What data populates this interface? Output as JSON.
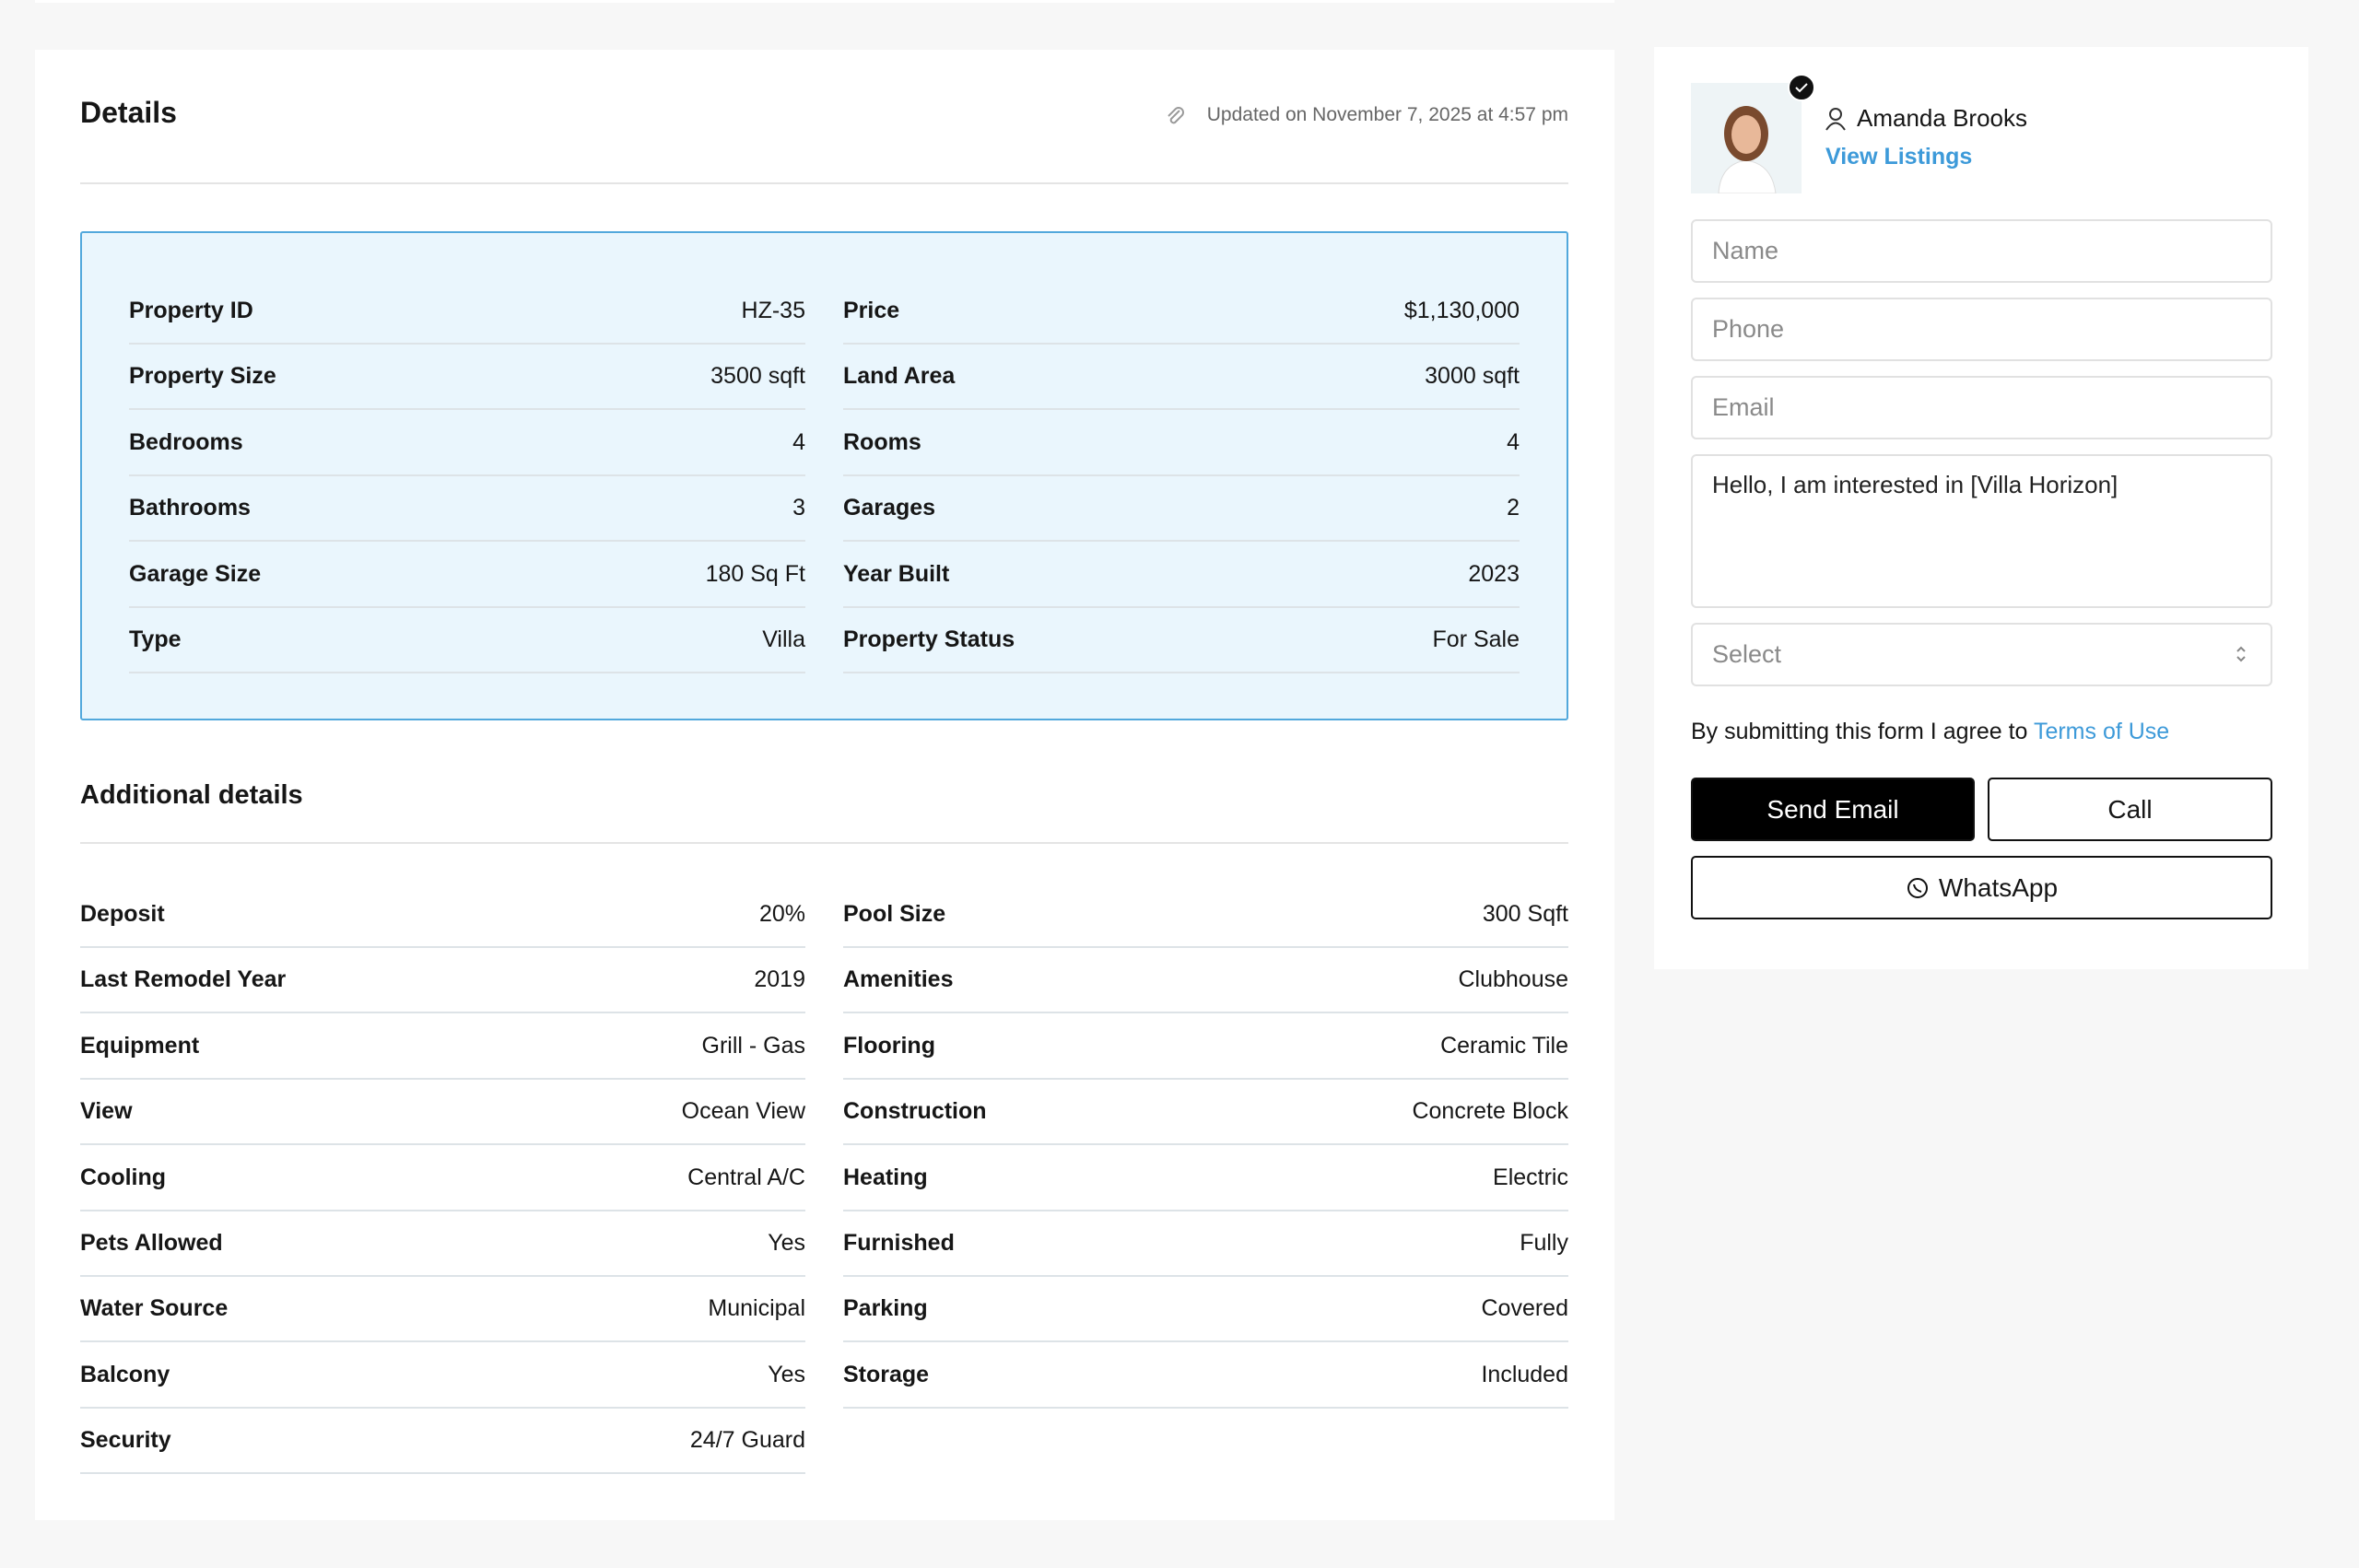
{
  "details": {
    "title": "Details",
    "updated": "Updated on November 7, 2025 at 4:57 pm",
    "overview": {
      "left": [
        {
          "label": "Property ID",
          "value": "HZ-35"
        },
        {
          "label": "Property Size",
          "value": "3500 sqft"
        },
        {
          "label": "Bedrooms",
          "value": "4"
        },
        {
          "label": "Bathrooms",
          "value": "3"
        },
        {
          "label": "Garage Size",
          "value": "180 Sq Ft"
        },
        {
          "label": "Type",
          "value": "Villa"
        }
      ],
      "right": [
        {
          "label": "Price",
          "value": "$1,130,000"
        },
        {
          "label": "Land Area",
          "value": "3000 sqft"
        },
        {
          "label": "Rooms",
          "value": "4"
        },
        {
          "label": "Garages",
          "value": "2"
        },
        {
          "label": "Year Built",
          "value": "2023"
        },
        {
          "label": "Property Status",
          "value": "For Sale"
        }
      ]
    }
  },
  "additional": {
    "title": "Additional details",
    "left": [
      {
        "label": "Deposit",
        "value": "20%"
      },
      {
        "label": "Last Remodel Year",
        "value": "2019"
      },
      {
        "label": "Equipment",
        "value": "Grill - Gas"
      },
      {
        "label": "View",
        "value": "Ocean View"
      },
      {
        "label": "Cooling",
        "value": "Central A/C"
      },
      {
        "label": "Pets Allowed",
        "value": "Yes"
      },
      {
        "label": "Water Source",
        "value": "Municipal"
      },
      {
        "label": "Balcony",
        "value": "Yes"
      },
      {
        "label": "Security",
        "value": "24/7 Guard"
      }
    ],
    "right": [
      {
        "label": "Pool Size",
        "value": "300 Sqft"
      },
      {
        "label": "Amenities",
        "value": "Clubhouse"
      },
      {
        "label": "Flooring",
        "value": "Ceramic Tile"
      },
      {
        "label": "Construction",
        "value": "Concrete Block"
      },
      {
        "label": "Heating",
        "value": "Electric"
      },
      {
        "label": "Furnished",
        "value": "Fully"
      },
      {
        "label": "Parking",
        "value": "Covered"
      },
      {
        "label": "Storage",
        "value": "Included"
      }
    ]
  },
  "agent": {
    "name": "Amanda Brooks",
    "link": "View Listings"
  },
  "form": {
    "name": "Name",
    "phone": "Phone",
    "email": "Email",
    "message": "Hello, I am interested in [Villa Horizon]",
    "select": "Select",
    "agree": "By submitting this form I agree to",
    "terms": "Terms of Use",
    "send": "Send Email",
    "call": "Call",
    "whatsapp": "WhatsApp"
  }
}
